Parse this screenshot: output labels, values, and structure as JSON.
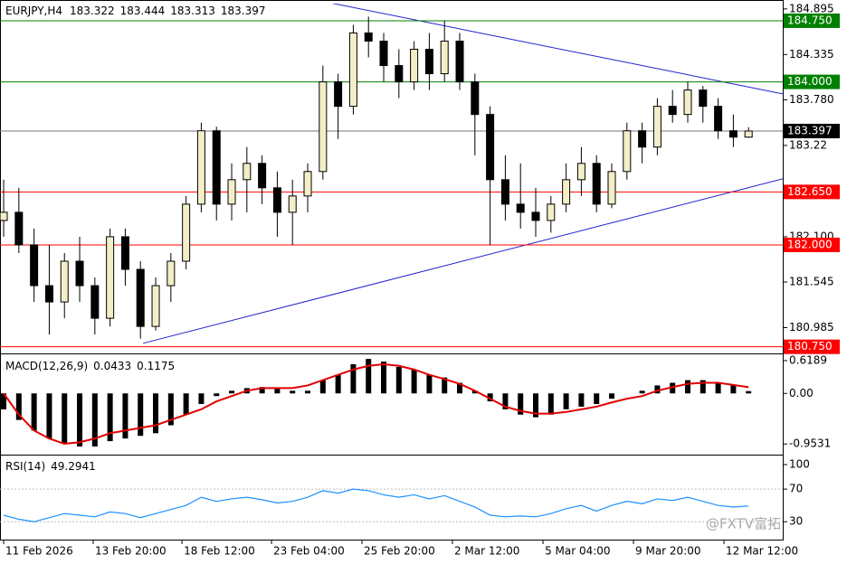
{
  "chart_data": [
    {
      "type": "candlestick",
      "symbol": "EURJPY,H4",
      "open": [
        182.3,
        182.4,
        182.0,
        181.5,
        181.3,
        181.8,
        181.5,
        181.1,
        182.1,
        181.7,
        181.0,
        181.5,
        181.8,
        182.5,
        183.4,
        182.5,
        182.8,
        183.0,
        182.7,
        182.4,
        182.6,
        182.9,
        184.0,
        183.7,
        184.6,
        184.5,
        184.2,
        184.0,
        184.4,
        184.1,
        184.5,
        184.0,
        183.6,
        182.8,
        182.5,
        182.4,
        182.3,
        182.5,
        182.8,
        183.0,
        182.5,
        182.9,
        183.4,
        183.2,
        183.7,
        183.6,
        183.9,
        183.7,
        183.4,
        183.322
      ],
      "high": [
        182.8,
        182.7,
        182.2,
        182.0,
        181.9,
        182.1,
        181.6,
        182.2,
        182.2,
        181.8,
        181.6,
        181.9,
        182.6,
        183.5,
        183.45,
        183.0,
        183.2,
        183.1,
        182.9,
        182.8,
        183.0,
        184.2,
        184.1,
        184.7,
        184.8,
        184.6,
        184.4,
        184.5,
        184.6,
        184.75,
        184.6,
        184.1,
        183.7,
        183.1,
        183.0,
        182.7,
        182.6,
        183.0,
        183.2,
        183.1,
        183.0,
        183.5,
        183.5,
        183.8,
        183.9,
        184.0,
        183.95,
        183.8,
        183.6,
        183.444
      ],
      "low": [
        182.1,
        181.9,
        181.3,
        180.9,
        181.1,
        181.3,
        180.9,
        181.0,
        181.5,
        180.85,
        180.95,
        181.3,
        181.7,
        182.4,
        182.3,
        182.3,
        182.4,
        182.5,
        182.1,
        182.0,
        182.4,
        182.8,
        183.3,
        183.6,
        184.3,
        184.0,
        183.8,
        183.9,
        183.9,
        184.0,
        183.9,
        183.1,
        182.0,
        182.3,
        182.2,
        182.1,
        182.15,
        182.4,
        182.6,
        182.4,
        182.45,
        182.8,
        183.0,
        183.1,
        183.5,
        183.5,
        183.5,
        183.3,
        183.2,
        183.313
      ],
      "close": [
        182.4,
        182.0,
        181.5,
        181.3,
        181.8,
        181.5,
        181.1,
        182.1,
        181.7,
        181.0,
        181.5,
        181.8,
        182.5,
        183.4,
        182.5,
        182.8,
        183.0,
        182.7,
        182.4,
        182.6,
        182.9,
        184.0,
        183.7,
        184.6,
        184.5,
        184.2,
        184.0,
        184.4,
        184.1,
        184.5,
        184.0,
        183.6,
        182.8,
        182.5,
        182.4,
        182.3,
        182.5,
        182.8,
        183.0,
        182.5,
        182.9,
        183.4,
        183.2,
        183.7,
        183.6,
        183.9,
        183.7,
        183.4,
        183.322,
        183.397
      ],
      "up_color": "#f3eec8",
      "down_color": "#000000",
      "xlim": [
        -0.24,
        51.25
      ],
      "xticks": [
        {
          "value": 0,
          "label": "11 Feb 2026"
        },
        {
          "value": 5.89,
          "label": "13 Feb 20:00"
        },
        {
          "value": 11.73,
          "label": "18 Feb 12:00"
        },
        {
          "value": 17.62,
          "label": "23 Feb 04:00"
        },
        {
          "value": 23.57,
          "label": "25 Feb 20:00"
        },
        {
          "value": 29.52,
          "label": "2 Mar 12:00"
        },
        {
          "value": 35.48,
          "label": "5 Mar 04:00"
        },
        {
          "value": 41.43,
          "label": "9 Mar 20:00"
        },
        {
          "value": 47.38,
          "label": "12 Mar 12:00"
        }
      ],
      "ylim": [
        180.68,
        184.96
      ],
      "yticks": [
        184.895,
        184.335,
        {
          "value": 183.78,
          "label": "183.780"
        },
        183.22,
        {
          "value": 182.1,
          "label": "182.100"
        },
        181.545,
        180.985
      ],
      "levels": [
        {
          "value": 184.75,
          "label": "184.750",
          "color": "#008000"
        },
        {
          "value": 184,
          "label": "184.000",
          "color": "#008000"
        },
        {
          "value": 182.65,
          "label": "182.650",
          "color": "#ff0000"
        },
        {
          "value": 182,
          "label": "182.000",
          "color": "#ff0000"
        },
        {
          "value": 180.75,
          "label": "180.750",
          "color": "#ff0000"
        }
      ],
      "trendlines": [
        {
          "points": [
            [
              21.2,
              184.98
            ],
            [
              51.25,
              183.853
            ]
          ],
          "color": "#2020d0"
        },
        {
          "points": [
            [
              9.17,
              180.793
            ],
            [
              51.25,
              182.81
            ]
          ],
          "color": "#2020d0"
        }
      ]
    },
    {
      "type": "macd",
      "label": "MACD(12,26,9)",
      "histogram": [
        -0.3,
        -0.5,
        -0.7,
        -0.85,
        -0.95,
        -1.0,
        -1.0,
        -0.9,
        -0.85,
        -0.8,
        -0.75,
        -0.6,
        -0.4,
        -0.2,
        -0.05,
        0.05,
        0.1,
        0.12,
        0.1,
        0.05,
        0.05,
        0.25,
        0.35,
        0.55,
        0.65,
        0.6,
        0.5,
        0.45,
        0.35,
        0.3,
        0.2,
        0.05,
        -0.15,
        -0.3,
        -0.4,
        -0.45,
        -0.4,
        -0.3,
        -0.25,
        -0.2,
        -0.1,
        0.0,
        0.05,
        0.15,
        0.2,
        0.25,
        0.25,
        0.2,
        0.15,
        0.0433
      ],
      "signal": [
        0,
        -0.4,
        -0.7,
        -0.85,
        -0.95,
        -0.92,
        -0.85,
        -0.75,
        -0.7,
        -0.65,
        -0.6,
        -0.5,
        -0.4,
        -0.3,
        -0.15,
        -0.05,
        0.05,
        0.1,
        0.1,
        0.1,
        0.15,
        0.25,
        0.35,
        0.45,
        0.52,
        0.55,
        0.52,
        0.45,
        0.35,
        0.27,
        0.18,
        0.05,
        -0.1,
        -0.25,
        -0.33,
        -0.38,
        -0.38,
        -0.35,
        -0.3,
        -0.25,
        -0.17,
        -0.1,
        -0.05,
        0.05,
        0.12,
        0.18,
        0.2,
        0.2,
        0.16,
        0.1175
      ],
      "histogram_color": "#000000",
      "signal_color": "#e00000",
      "ylim": [
        -1.12,
        0.72
      ],
      "yticks": [
        0.6189,
        {
          "value": 0,
          "label": "0.00"
        },
        -0.9531
      ]
    },
    {
      "type": "rsi",
      "label": "RSI(14)",
      "values": [
        38,
        33,
        30,
        35,
        40,
        38,
        36,
        42,
        40,
        35,
        40,
        45,
        50,
        60,
        55,
        58,
        60,
        57,
        53,
        55,
        60,
        68,
        65,
        70,
        68,
        63,
        60,
        63,
        58,
        62,
        55,
        48,
        38,
        36,
        37,
        36,
        40,
        46,
        50,
        43,
        50,
        55,
        52,
        58,
        56,
        60,
        55,
        50,
        48,
        49.2941
      ],
      "color": "#1e90ff",
      "ylim": [
        7,
        110
      ],
      "yticks": [
        100,
        70,
        30
      ],
      "grid": [
        70,
        30
      ]
    }
  ],
  "watermark": "@FXTV富拓"
}
